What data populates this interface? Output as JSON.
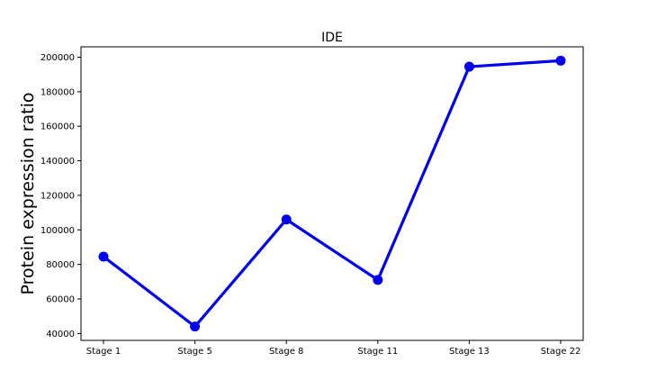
{
  "chart_data": {
    "type": "line",
    "title": "IDE",
    "xlabel": "",
    "ylabel": "Protein expression ratio",
    "categories": [
      "Stage 1",
      "Stage 5",
      "Stage 8",
      "Stage 11",
      "Stage 13",
      "Stage 22"
    ],
    "series": [
      {
        "values": [
          84500,
          44000,
          106000,
          71000,
          194500,
          198000
        ],
        "color": "#0000ee"
      }
    ],
    "yticks": [
      40000,
      60000,
      80000,
      100000,
      120000,
      140000,
      160000,
      180000,
      200000
    ],
    "ytick_labels": [
      "40000",
      "60000",
      "80000",
      "100000",
      "120000",
      "140000",
      "160000",
      "180000",
      "200000"
    ],
    "ylim": [
      36000,
      206000
    ],
    "grid": false,
    "legend": "none"
  }
}
